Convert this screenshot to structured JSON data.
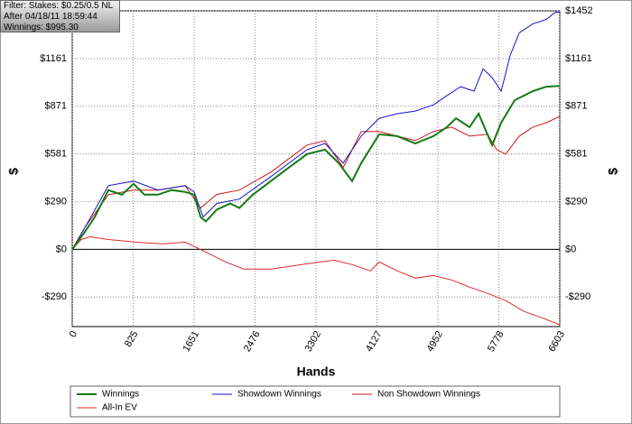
{
  "chart_data": {
    "type": "line",
    "info": [
      "Filter: Stakes: $0.25/0.5 NL",
      "After 04/18/11 18:59:44",
      "Winnings: $995.30"
    ],
    "x_label": "Hands",
    "y_label": "$",
    "xlim": [
      0,
      6603
    ],
    "xticks": [
      0,
      825,
      1651,
      2476,
      3302,
      4127,
      4952,
      5778,
      6603
    ],
    "ylim": [
      -470,
      1452
    ],
    "yticks": [
      {
        "value": 1452,
        "label": "$1452"
      },
      {
        "value": 1161,
        "label": "$1161"
      },
      {
        "value": 871,
        "label": "$871"
      },
      {
        "value": 581,
        "label": "$581"
      },
      {
        "value": 290,
        "label": "$290"
      },
      {
        "value": 0,
        "label": "$0"
      },
      {
        "value": -290,
        "label": "-$290"
      }
    ],
    "grid": true,
    "legend": "bottom",
    "series": [
      {
        "name": "Winnings",
        "color": "#137a13",
        "x": [
          0,
          183,
          306,
          489,
          673,
          832,
          978,
          1162,
          1345,
          1529,
          1651,
          1737,
          1810,
          1957,
          2140,
          2263,
          2446,
          2691,
          2935,
          3180,
          3424,
          3608,
          3791,
          3914,
          4158,
          4403,
          4647,
          4892,
          5075,
          5198,
          5381,
          5504,
          5687,
          5809,
          5993,
          6238,
          6421,
          6603
        ],
        "values": [
          0,
          115,
          197,
          361,
          333,
          399,
          333,
          333,
          361,
          350,
          333,
          197,
          170,
          241,
          279,
          252,
          333,
          416,
          498,
          580,
          607,
          525,
          416,
          525,
          700,
          689,
          645,
          689,
          744,
          798,
          744,
          826,
          634,
          771,
          908,
          963,
          990,
          995
        ]
      },
      {
        "name": "Showdown Winnings",
        "color": "#1515c8",
        "x": [
          0,
          183,
          489,
          832,
          1162,
          1529,
          1651,
          1773,
          1957,
          2263,
          2691,
          3180,
          3424,
          3669,
          3914,
          4158,
          4403,
          4647,
          4892,
          5075,
          5259,
          5442,
          5565,
          5687,
          5809,
          5932,
          6054,
          6238,
          6421,
          6543,
          6603
        ],
        "values": [
          0,
          142,
          388,
          416,
          361,
          388,
          350,
          197,
          279,
          306,
          443,
          607,
          645,
          525,
          689,
          798,
          826,
          842,
          880,
          935,
          990,
          963,
          1099,
          1045,
          963,
          1181,
          1318,
          1373,
          1400,
          1444,
          1444
        ]
      },
      {
        "name": "Non Showdown Winnings",
        "color": "#d01515",
        "x": [
          0,
          183,
          489,
          832,
          1162,
          1529,
          1737,
          1957,
          2263,
          2691,
          3180,
          3424,
          3669,
          3914,
          4158,
          4403,
          4647,
          4892,
          5137,
          5381,
          5626,
          5748,
          5870,
          6054,
          6238,
          6421,
          6603
        ],
        "values": [
          0,
          142,
          333,
          361,
          361,
          388,
          252,
          334,
          361,
          470,
          635,
          662,
          498,
          717,
          717,
          689,
          662,
          717,
          744,
          689,
          700,
          607,
          580,
          689,
          744,
          771,
          809
        ]
      },
      {
        "name": "All-In EV",
        "color": "#e02a2a",
        "x": [
          0,
          122,
          245,
          489,
          856,
          1223,
          1529,
          1835,
          2079,
          2324,
          2691,
          2935,
          3180,
          3547,
          3791,
          4036,
          4158,
          4403,
          4647,
          4892,
          5137,
          5381,
          5626,
          5870,
          6115,
          6360,
          6603
        ],
        "values": [
          0,
          60,
          77,
          60,
          44,
          33,
          44,
          -22,
          -77,
          -120,
          -120,
          -104,
          -88,
          -66,
          -93,
          -131,
          -77,
          -131,
          -175,
          -159,
          -186,
          -230,
          -268,
          -312,
          -377,
          -416,
          -459
        ]
      }
    ]
  }
}
